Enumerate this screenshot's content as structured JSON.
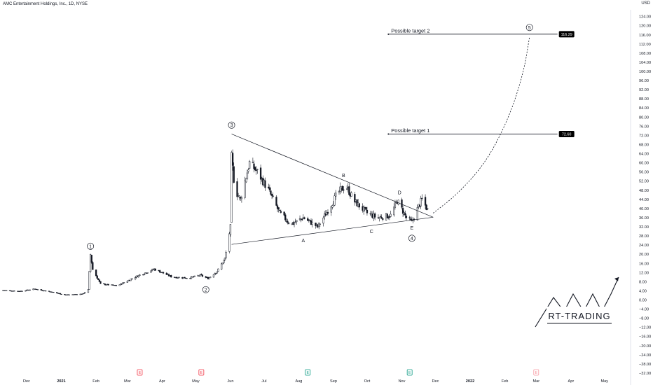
{
  "header": {
    "symbol_title": "AMC Entertainment Holdings, Inc., 1D, NYSE",
    "currency": "USD"
  },
  "chart_data": {
    "type": "candlestick",
    "title": "AMC Entertainment Holdings, Inc., 1D, NYSE",
    "ylim": [
      -32,
      128
    ],
    "y_ticks": [
      124,
      120,
      116,
      112,
      108,
      104,
      100,
      96,
      92,
      88,
      84,
      80,
      76,
      72,
      68,
      64,
      60,
      56,
      52,
      48,
      44,
      40,
      36,
      32,
      28,
      24,
      20,
      16,
      12,
      8,
      4,
      0,
      -4,
      -8,
      -12,
      -16,
      -20,
      -24,
      -28,
      -32
    ],
    "y_tick_labels": [
      "124.00",
      "120.00",
      "116.00",
      "112.00",
      "108.00",
      "104.00",
      "100.00",
      "96.00",
      "92.00",
      "88.00",
      "84.00",
      "80.00",
      "76.00",
      "72.00",
      "68.00",
      "64.00",
      "60.00",
      "56.00",
      "52.00",
      "48.00",
      "44.00",
      "40.00",
      "36.00",
      "32.00",
      "28.00",
      "24.00",
      "20.00",
      "16.00",
      "12.00",
      "8.00",
      "4.00",
      "0.00",
      "−4.00",
      "−8.00",
      "−12.00",
      "−16.00",
      "−20.00",
      "−24.00",
      "−28.00",
      "−32.00"
    ],
    "x_labels": [
      {
        "date": "2020-12-01",
        "label": "Dec",
        "bold": false
      },
      {
        "date": "2021-01-01",
        "label": "2021",
        "bold": true
      },
      {
        "date": "2021-02-01",
        "label": "Feb",
        "bold": false
      },
      {
        "date": "2021-03-01",
        "label": "Mar",
        "bold": false
      },
      {
        "date": "2021-04-01",
        "label": "Apr",
        "bold": false
      },
      {
        "date": "2021-05-01",
        "label": "May",
        "bold": false
      },
      {
        "date": "2021-06-01",
        "label": "Jun",
        "bold": false
      },
      {
        "date": "2021-07-01",
        "label": "Jul",
        "bold": false
      },
      {
        "date": "2021-08-01",
        "label": "Aug",
        "bold": false
      },
      {
        "date": "2021-09-01",
        "label": "Sep",
        "bold": false
      },
      {
        "date": "2021-10-01",
        "label": "Oct",
        "bold": false
      },
      {
        "date": "2021-11-01",
        "label": "Nov",
        "bold": false
      },
      {
        "date": "2021-12-01",
        "label": "Dec",
        "bold": false
      },
      {
        "date": "2022-01-01",
        "label": "2022",
        "bold": true
      },
      {
        "date": "2022-02-01",
        "label": "Feb",
        "bold": false
      },
      {
        "date": "2022-03-01",
        "label": "Mar",
        "bold": false
      },
      {
        "date": "2022-04-01",
        "label": "Apr",
        "bold": false
      },
      {
        "date": "2022-05-01",
        "label": "May",
        "bold": false
      }
    ],
    "price_path": [
      {
        "date": "2020-11-10",
        "close": 4.2
      },
      {
        "date": "2020-11-25",
        "close": 3.8
      },
      {
        "date": "2020-12-08",
        "close": 4.8
      },
      {
        "date": "2020-12-22",
        "close": 3.6
      },
      {
        "date": "2021-01-05",
        "close": 2.2
      },
      {
        "date": "2021-01-20",
        "close": 2.6
      },
      {
        "date": "2021-01-25",
        "close": 4.5
      },
      {
        "date": "2021-01-27",
        "close": 19.9
      },
      {
        "date": "2021-01-29",
        "close": 13.3
      },
      {
        "date": "2021-02-05",
        "close": 7.0
      },
      {
        "date": "2021-02-20",
        "close": 6.2
      },
      {
        "date": "2021-03-10",
        "close": 10.5
      },
      {
        "date": "2021-03-25",
        "close": 13.5
      },
      {
        "date": "2021-04-10",
        "close": 10.0
      },
      {
        "date": "2021-04-25",
        "close": 9.6
      },
      {
        "date": "2021-05-05",
        "close": 10.8
      },
      {
        "date": "2021-05-12",
        "close": 9.4
      },
      {
        "date": "2021-05-20",
        "close": 12.5
      },
      {
        "date": "2021-05-27",
        "close": 18.0
      },
      {
        "date": "2021-06-01",
        "close": 32.0
      },
      {
        "date": "2021-06-02",
        "close": 62.5
      },
      {
        "date": "2021-06-05",
        "close": 48.0
      },
      {
        "date": "2021-06-10",
        "close": 44.0
      },
      {
        "date": "2021-06-18",
        "close": 60.0
      },
      {
        "date": "2021-06-25",
        "close": 56.0
      },
      {
        "date": "2021-07-05",
        "close": 48.0
      },
      {
        "date": "2021-07-15",
        "close": 38.0
      },
      {
        "date": "2021-07-25",
        "close": 33.0
      },
      {
        "date": "2021-08-05",
        "close": 36.0
      },
      {
        "date": "2021-08-18",
        "close": 32.0
      },
      {
        "date": "2021-08-28",
        "close": 40.0
      },
      {
        "date": "2021-09-05",
        "close": 47.0
      },
      {
        "date": "2021-09-12",
        "close": 50.0
      },
      {
        "date": "2021-09-20",
        "close": 43.0
      },
      {
        "date": "2021-10-01",
        "close": 38.0
      },
      {
        "date": "2021-10-10",
        "close": 36.0
      },
      {
        "date": "2021-10-22",
        "close": 37.0
      },
      {
        "date": "2021-10-28",
        "close": 43.5
      },
      {
        "date": "2021-11-05",
        "close": 36.0
      },
      {
        "date": "2021-11-10",
        "close": 34.0
      },
      {
        "date": "2021-11-16",
        "close": 41.0
      },
      {
        "date": "2021-11-19",
        "close": 44.0
      },
      {
        "date": "2021-11-25",
        "close": 38.5
      }
    ],
    "triangle": {
      "upper": [
        {
          "date": "2021-06-02",
          "price": 72.6
        },
        {
          "date": "2021-11-29",
          "price": 36.2
        }
      ],
      "lower": [
        {
          "date": "2021-06-02",
          "price": 24.3
        },
        {
          "date": "2021-11-29",
          "price": 36.2
        }
      ]
    },
    "projection": {
      "style": "dashed",
      "points": [
        {
          "date": "2021-11-29",
          "price": 38.0
        },
        {
          "date": "2021-12-20",
          "price": 46.0
        },
        {
          "date": "2022-01-15",
          "price": 60.0
        },
        {
          "date": "2022-02-05",
          "price": 80.0
        },
        {
          "date": "2022-02-18",
          "price": 100.0
        },
        {
          "date": "2022-02-23",
          "price": 115.0
        }
      ]
    },
    "wave_labels": [
      {
        "label": "1",
        "circled": true,
        "date": "2021-01-27",
        "price": 23.5
      },
      {
        "label": "2",
        "circled": true,
        "date": "2021-05-10",
        "price": 4.5
      },
      {
        "label": "3",
        "circled": true,
        "date": "2021-06-02",
        "price": 76.5
      },
      {
        "label": "4",
        "circled": true,
        "date": "2021-11-10",
        "price": 27.0
      },
      {
        "label": "5",
        "circled": true,
        "date": "2022-02-23",
        "price": 119.2
      },
      {
        "label": "A",
        "circled": false,
        "date": "2021-08-05",
        "price": 26.0
      },
      {
        "label": "B",
        "circled": false,
        "date": "2021-09-10",
        "price": 54.5
      },
      {
        "label": "C",
        "circled": false,
        "date": "2021-10-05",
        "price": 30.0
      },
      {
        "label": "D",
        "circled": false,
        "date": "2021-10-30",
        "price": 47.0
      },
      {
        "label": "E",
        "circled": false,
        "date": "2021-11-10",
        "price": 31.5
      }
    ],
    "target_lines": [
      {
        "label": "Possible target 2",
        "price": 116.29,
        "badge": "116.29",
        "start_date": "2021-10-20",
        "end_date": "2022-03-20"
      },
      {
        "label": "Possible target 1",
        "price": 72.6,
        "badge": "72.60",
        "start_date": "2021-10-20",
        "end_date": "2022-03-20"
      }
    ],
    "earnings_markers": [
      {
        "date": "2021-03-12",
        "letter": "E",
        "kind": "red"
      },
      {
        "date": "2021-05-06",
        "letter": "E",
        "kind": "red"
      },
      {
        "date": "2021-08-09",
        "letter": "E",
        "kind": "teal"
      },
      {
        "date": "2021-11-08",
        "letter": "E",
        "kind": "teal"
      },
      {
        "date": "2022-03-01",
        "letter": "E",
        "kind": "red-outline"
      }
    ],
    "grid": false
  },
  "logo": {
    "text": "RT-TRADING"
  },
  "colors": {
    "candle": "#131722",
    "axis_text": "#131722",
    "badge_bg": "#000000",
    "badge_text": "#ffffff",
    "earnings_red": "#f23645",
    "earnings_teal": "#089981"
  }
}
